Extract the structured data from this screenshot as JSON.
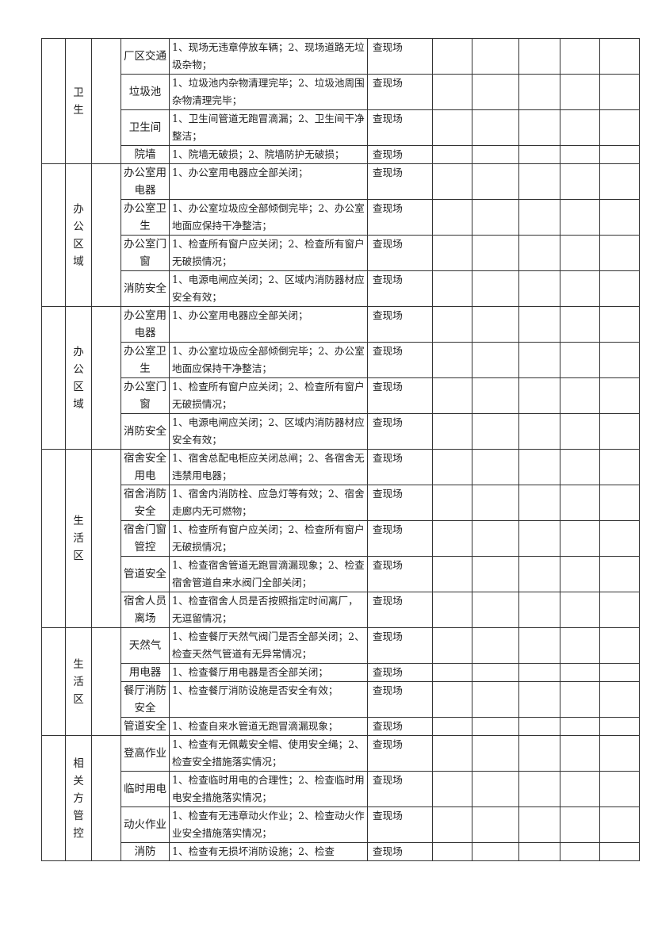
{
  "table": {
    "groups": [
      {
        "area": "卫生",
        "rows": [
          {
            "item": "厂区交通",
            "content": "1、现场无违章停放车辆；2、现场道路无垃圾杂物；",
            "method": "查现场"
          },
          {
            "item": "垃圾池",
            "content": "1、垃圾池内杂物清理完毕；2、垃圾池周围杂物清理完毕；",
            "method": "查现场"
          },
          {
            "item": "卫生间",
            "content": "1、卫生间管道无跑冒滴漏；2、卫生间干净整洁；",
            "method": "查现场"
          },
          {
            "item": "院墙",
            "content": "1、院墙无破损；2、院墙防护无破损；",
            "method": "查现场"
          }
        ]
      },
      {
        "area": "办公区域",
        "rows": [
          {
            "item": "办公室用电器",
            "content": "1、办公室用电器应全部关闭；",
            "method": "查现场"
          },
          {
            "item": "办公室卫生",
            "content": "1、办公室垃圾应全部倾倒完毕；2、办公室地面应保持干净整洁；",
            "method": "查现场"
          },
          {
            "item": "办公室门窗",
            "content": "1、检查所有窗户应关闭；2、检查所有窗户无破损情况；",
            "method": "查现场"
          },
          {
            "item": "消防安全",
            "content": "1、电源电闸应关闭；2、区域内消防器材应安全有效；",
            "method": "查现场"
          }
        ]
      },
      {
        "area": "办公区域",
        "rows": [
          {
            "item": "办公室用电器",
            "content": "1、办公室用电器应全部关闭；",
            "method": "查现场"
          },
          {
            "item": "办公室卫生",
            "content": "1、办公室垃圾应全部倾倒完毕；2、办公室地面应保持干净整洁；",
            "method": "查现场"
          },
          {
            "item": "办公室门窗",
            "content": "1、检查所有窗户应关闭；2、检查所有窗户无破损情况；",
            "method": "查现场"
          },
          {
            "item": "消防安全",
            "content": "1、电源电闸应关闭；2、区域内消防器材应安全有效；",
            "method": "查现场"
          }
        ]
      },
      {
        "area": "生活区",
        "rows": [
          {
            "item": "宿舍安全用电",
            "content": "1、宿舍总配电柜应关闭总闸；2、各宿舍无违禁用电器；",
            "method": "查现场"
          },
          {
            "item": "宿舍消防安全",
            "content": "1、宿舍内消防栓、应急灯等有效；2、宿舍走廊内无可燃物；",
            "method": "查现场"
          },
          {
            "item": "宿舍门窗管控",
            "content": "1、检查所有窗户应关闭；2、检查所有窗户无破损情况；",
            "method": "查现场"
          },
          {
            "item": "管道安全",
            "content": "1、检查宿舍管道无跑冒滴漏现象；2、检查宿舍管道自来水阀门全部关闭；",
            "method": "查现场"
          },
          {
            "item": "宿舍人员离场",
            "content": "1、检查宿舍人员是否按照指定时间离厂，无逗留情况；",
            "method": "查现场"
          }
        ]
      },
      {
        "area": "生活区",
        "rows": [
          {
            "item": "天然气",
            "content": "1、检查餐厅天然气阀门是否全部关闭；2、检查天然气管道有无异常情况；",
            "method": "查现场"
          },
          {
            "item": "用电器",
            "content": "1、检查餐厅用电器是否全部关闭；",
            "method": "查现场"
          },
          {
            "item": "餐厅消防安全",
            "content": "1、检查餐厅消防设施是否安全有效；",
            "method": "查现场"
          },
          {
            "item": "管道安全",
            "content": "1、检查自来水管道无跑冒滴漏现象；",
            "method": "查现场"
          }
        ]
      },
      {
        "area": "相关方管控",
        "rows": [
          {
            "item": "登高作业",
            "content": "1、检查有无佩戴安全帽、使用安全绳；2、检查安全措施落实情况；",
            "method": "查现场"
          },
          {
            "item": "临时用电",
            "content": "1、检查临时用电的合理性；2、检查临时用电安全措施落实情况；",
            "method": "查现场"
          },
          {
            "item": "动火作业",
            "content": "1、检查有无违章动火作业；2、检查动火作业安全措施落实情况；",
            "method": "查现场"
          },
          {
            "item": "消防",
            "content": "1、检查有无损坏消防设施；2、检查",
            "method": "查现场"
          }
        ]
      }
    ]
  }
}
